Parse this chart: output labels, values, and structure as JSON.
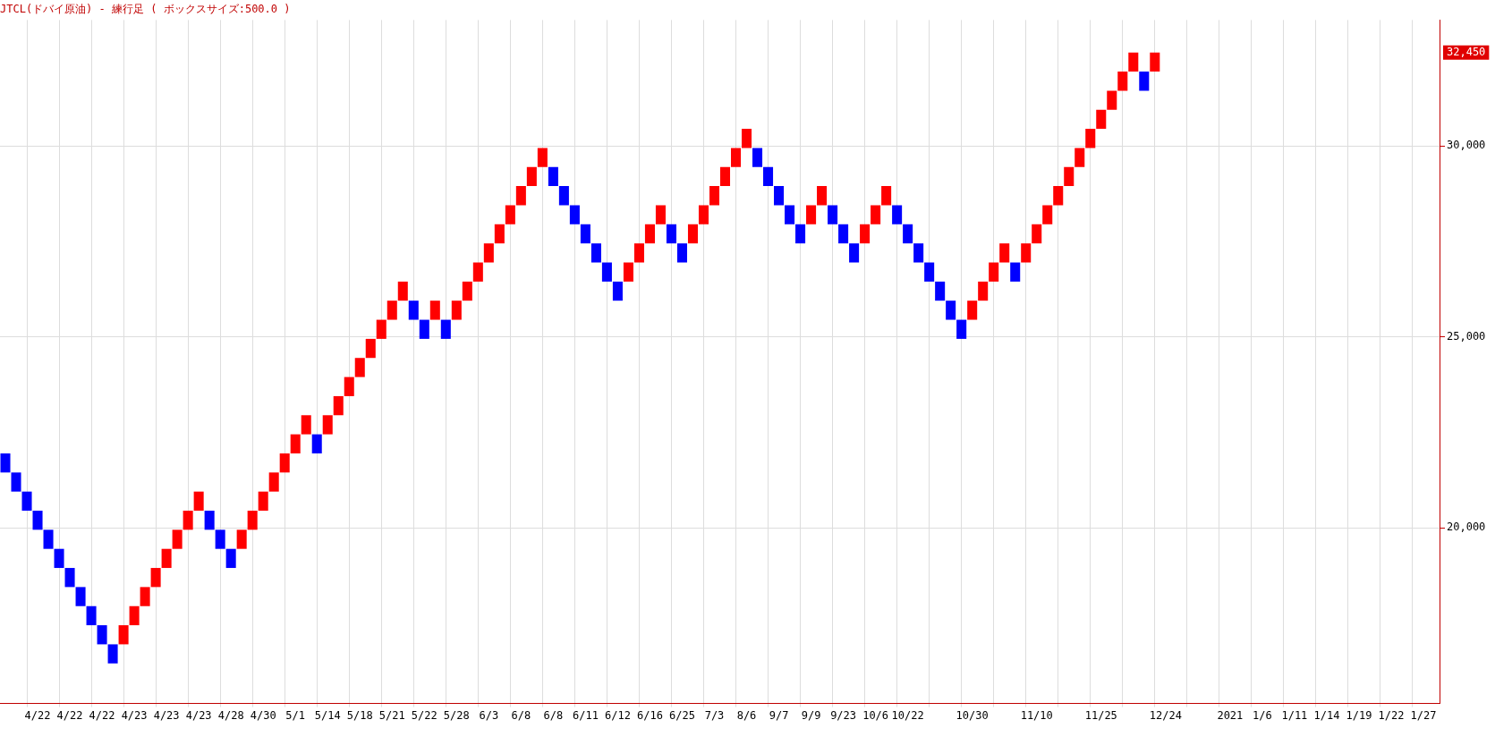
{
  "chart_data": {
    "type": "bar",
    "title": "JTCL(ドバイ原油) - 練行足 ( ボックスサイズ:500.0 )",
    "categories": [
      null,
      null,
      null,
      "4/22",
      null,
      null,
      "4/22",
      null,
      null,
      "4/22",
      null,
      null,
      "4/23",
      null,
      null,
      "4/23",
      null,
      null,
      "4/23",
      null,
      null,
      "4/28",
      null,
      null,
      "4/30",
      null,
      null,
      "5/1",
      null,
      null,
      "5/14",
      null,
      null,
      "5/18",
      null,
      null,
      "5/21",
      null,
      null,
      "5/22",
      null,
      null,
      "5/28",
      null,
      null,
      "6/3",
      null,
      null,
      "6/8",
      null,
      null,
      "6/8",
      null,
      null,
      "6/11",
      null,
      null,
      "6/12",
      null,
      null,
      "6/16",
      null,
      null,
      "6/25",
      null,
      null,
      "7/3",
      null,
      null,
      "8/6",
      null,
      null,
      "9/7",
      null,
      null,
      "9/9",
      null,
      null,
      "9/23",
      null,
      null,
      "10/6",
      null,
      null,
      "10/22",
      null,
      null,
      null,
      null,
      null,
      "10/30",
      null,
      null,
      null,
      null,
      null,
      "11/10",
      null,
      null,
      null,
      null,
      null,
      "11/25",
      null,
      null,
      null,
      null,
      null,
      "12/24",
      null,
      null,
      null,
      null,
      null,
      "2021",
      null,
      null,
      "1/6",
      null,
      null,
      "1/11",
      null,
      null,
      "1/14",
      null,
      null,
      "1/19",
      null,
      null,
      "1/22",
      null,
      null,
      "1/27",
      null
    ],
    "base": [
      21450,
      20950,
      20450,
      19950,
      19450,
      18950,
      18450,
      17950,
      17450,
      16950,
      16450,
      16950,
      17450,
      17950,
      18450,
      18950,
      19450,
      19950,
      20450,
      19950,
      19450,
      18950,
      19450,
      19950,
      20450,
      20950,
      21450,
      21950,
      22450,
      21950,
      22450,
      22950,
      23450,
      23950,
      24450,
      24950,
      25450,
      25950,
      25450,
      24950,
      25450,
      24950,
      25450,
      25950,
      26450,
      26950,
      27450,
      27950,
      28450,
      28950,
      29450,
      28950,
      28450,
      27950,
      27450,
      26950,
      26450,
      25950,
      26450,
      26950,
      27450,
      27950,
      27450,
      26950,
      27450,
      27950,
      28450,
      28950,
      29450,
      29950,
      29450,
      28950,
      28450,
      27950,
      27450,
      27950,
      28450,
      27950,
      27450,
      26950,
      27450,
      27950,
      28450,
      27950,
      27450,
      26950,
      26450,
      25950,
      25450,
      24950,
      25450,
      25950,
      26450,
      26950,
      26450,
      26950,
      27450,
      27950,
      28450,
      28950,
      29450,
      29950,
      30450,
      30950,
      31450,
      31950,
      31450,
      31950,
      null,
      null,
      null,
      null,
      null,
      null,
      null,
      null,
      null,
      null,
      null,
      null,
      null,
      null,
      null,
      null,
      null,
      null,
      null,
      null,
      null,
      null,
      null,
      null,
      null,
      null
    ],
    "values": [
      500,
      500,
      500,
      500,
      500,
      500,
      500,
      500,
      500,
      500,
      500,
      500,
      500,
      500,
      500,
      500,
      500,
      500,
      500,
      500,
      500,
      500,
      500,
      500,
      500,
      500,
      500,
      500,
      500,
      500,
      500,
      500,
      500,
      500,
      500,
      500,
      500,
      500,
      500,
      500,
      500,
      500,
      500,
      500,
      500,
      500,
      500,
      500,
      500,
      500,
      500,
      500,
      500,
      500,
      500,
      500,
      500,
      500,
      500,
      500,
      500,
      500,
      500,
      500,
      500,
      500,
      500,
      500,
      500,
      500,
      500,
      500,
      500,
      500,
      500,
      500,
      500,
      500,
      500,
      500,
      500,
      500,
      500,
      500,
      500,
      500,
      500,
      500,
      500,
      500,
      500,
      500,
      500,
      500,
      500,
      500,
      500,
      500,
      500,
      500,
      500,
      500,
      500,
      500,
      500,
      500,
      500,
      500,
      null,
      null,
      null,
      null,
      null,
      null,
      null,
      null,
      null,
      null,
      null,
      null,
      null,
      null,
      null,
      null,
      null,
      null,
      null,
      null,
      null,
      null,
      null,
      null,
      null,
      null
    ],
    "colors": [
      "#0000ff",
      "#0000ff",
      "#0000ff",
      "#0000ff",
      "#0000ff",
      "#0000ff",
      "#0000ff",
      "#0000ff",
      "#0000ff",
      "#0000ff",
      "#0000ff",
      "#ff0000",
      "#ff0000",
      "#ff0000",
      "#ff0000",
      "#ff0000",
      "#ff0000",
      "#ff0000",
      "#ff0000",
      "#0000ff",
      "#0000ff",
      "#0000ff",
      "#ff0000",
      "#ff0000",
      "#ff0000",
      "#ff0000",
      "#ff0000",
      "#ff0000",
      "#ff0000",
      "#0000ff",
      "#ff0000",
      "#ff0000",
      "#ff0000",
      "#ff0000",
      "#ff0000",
      "#ff0000",
      "#ff0000",
      "#ff0000",
      "#0000ff",
      "#0000ff",
      "#ff0000",
      "#0000ff",
      "#ff0000",
      "#ff0000",
      "#ff0000",
      "#ff0000",
      "#ff0000",
      "#ff0000",
      "#ff0000",
      "#ff0000",
      "#ff0000",
      "#0000ff",
      "#0000ff",
      "#0000ff",
      "#0000ff",
      "#0000ff",
      "#0000ff",
      "#0000ff",
      "#ff0000",
      "#ff0000",
      "#ff0000",
      "#ff0000",
      "#0000ff",
      "#0000ff",
      "#ff0000",
      "#ff0000",
      "#ff0000",
      "#ff0000",
      "#ff0000",
      "#ff0000",
      "#0000ff",
      "#0000ff",
      "#0000ff",
      "#0000ff",
      "#0000ff",
      "#ff0000",
      "#ff0000",
      "#0000ff",
      "#0000ff",
      "#0000ff",
      "#ff0000",
      "#ff0000",
      "#ff0000",
      "#0000ff",
      "#0000ff",
      "#0000ff",
      "#0000ff",
      "#0000ff",
      "#0000ff",
      "#0000ff",
      "#ff0000",
      "#ff0000",
      "#ff0000",
      "#ff0000",
      "#0000ff",
      "#ff0000",
      "#ff0000",
      "#ff0000",
      "#ff0000",
      "#ff0000",
      "#ff0000",
      "#ff0000",
      "#ff0000",
      "#ff0000",
      "#ff0000",
      "#ff0000",
      "#0000ff",
      "#ff0000",
      null,
      null,
      null,
      null,
      null,
      null,
      null,
      null,
      null,
      null,
      null,
      null,
      null,
      null,
      null,
      null,
      null,
      null,
      null,
      null,
      null,
      null,
      null,
      null,
      null,
      null
    ],
    "ylim": [
      15400,
      33300
    ],
    "yticks": [
      {
        "value": 20000,
        "label": "20,000"
      },
      {
        "value": 25000,
        "label": "25,000"
      },
      {
        "value": 30000,
        "label": "30,000"
      }
    ],
    "grid": true,
    "annotations": [
      "32,450"
    ]
  }
}
